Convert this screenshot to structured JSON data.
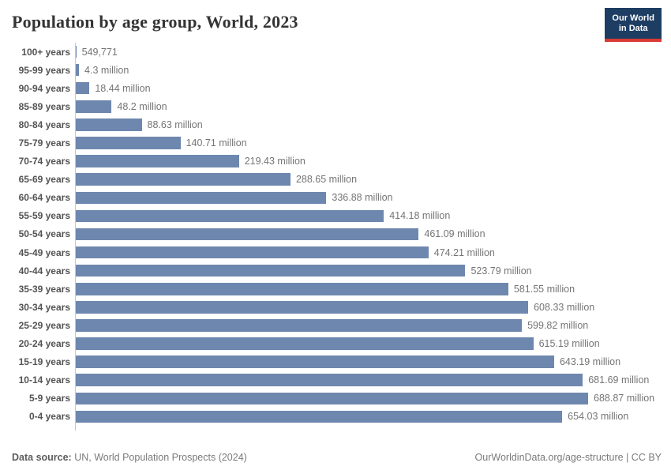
{
  "header": {
    "logo": {
      "line1": "Our World",
      "line2": "in Data"
    }
  },
  "chart_data": {
    "type": "bar",
    "orientation": "horizontal",
    "title": "Population by age group, World, 2023",
    "xlabel": "",
    "ylabel": "",
    "grid": false,
    "legend": "none",
    "xlim_millions": [
      0,
      689
    ],
    "categories": [
      "100+ years",
      "95-99 years",
      "90-94 years",
      "85-89 years",
      "80-84 years",
      "75-79 years",
      "70-74 years",
      "65-69 years",
      "60-64 years",
      "55-59 years",
      "50-54 years",
      "45-49 years",
      "40-44 years",
      "35-39 years",
      "30-34 years",
      "25-29 years",
      "20-24 years",
      "15-19 years",
      "10-14 years",
      "5-9 years",
      "0-4 years"
    ],
    "values_millions": [
      0.549771,
      4.3,
      18.44,
      48.2,
      88.63,
      140.71,
      219.43,
      288.65,
      336.88,
      414.18,
      461.09,
      474.21,
      523.79,
      581.55,
      608.33,
      599.82,
      615.19,
      643.19,
      681.69,
      688.87,
      654.03
    ],
    "value_labels": [
      "549,771",
      "4.3 million",
      "18.44 million",
      "48.2 million",
      "88.63 million",
      "140.71 million",
      "219.43 million",
      "288.65 million",
      "336.88 million",
      "414.18 million",
      "461.09 million",
      "474.21 million",
      "523.79 million",
      "581.55 million",
      "608.33 million",
      "599.82 million",
      "615.19 million",
      "643.19 million",
      "681.69 million",
      "688.87 million",
      "654.03 million"
    ]
  },
  "colors": {
    "bar": "#6e87ae",
    "logo_navy": "#1d3d63",
    "logo_red": "#d93a34",
    "axis_line": "#c9c9c9"
  },
  "footer": {
    "source_prefix": "Data source:",
    "source_text": " UN, World Population Prospects (2024)",
    "url": "OurWorldinData.org/age-structure",
    "divider": " | ",
    "license": "CC BY"
  }
}
